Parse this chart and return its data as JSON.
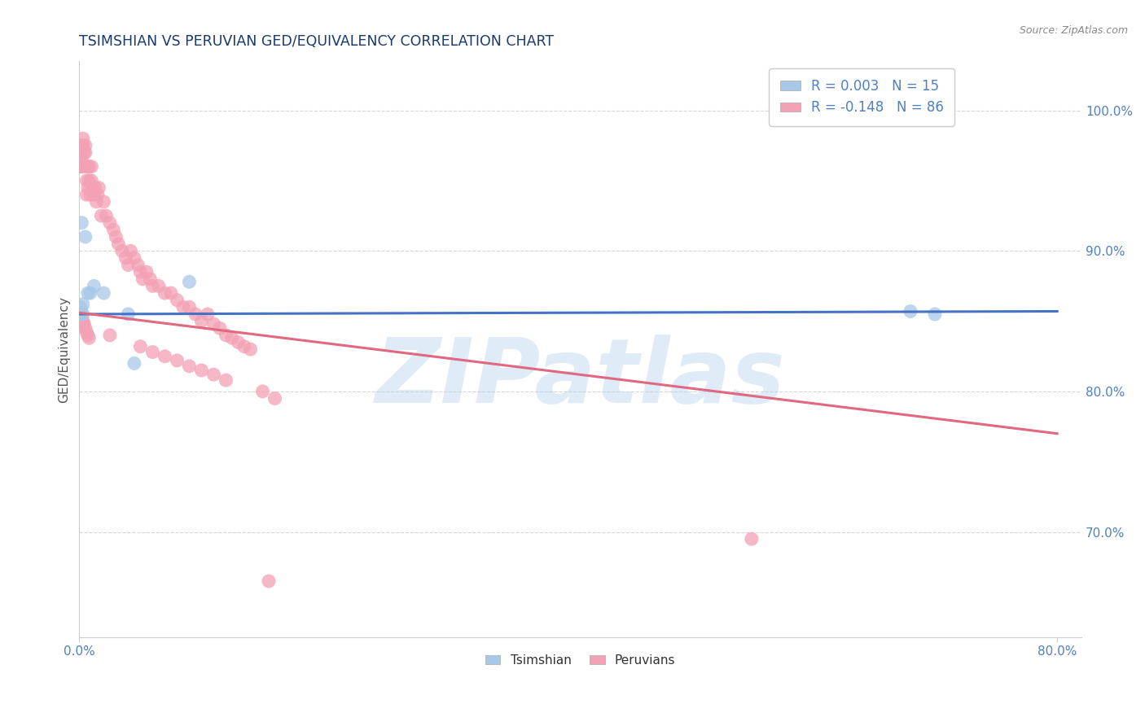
{
  "title": "TSIMSHIAN VS PERUVIAN GED/EQUIVALENCY CORRELATION CHART",
  "source": "Source: ZipAtlas.com",
  "ylabel": "GED/Equivalency",
  "ytick_labels": [
    "100.0%",
    "90.0%",
    "80.0%",
    "70.0%"
  ],
  "ytick_values": [
    1.0,
    0.9,
    0.8,
    0.7
  ],
  "xtick_labels": [
    "0.0%",
    "80.0%"
  ],
  "xtick_values": [
    0.0,
    0.8
  ],
  "xlim": [
    0.0,
    0.82
  ],
  "ylim": [
    0.625,
    1.035
  ],
  "watermark": "ZIPatlas",
  "legend_R1": "R = 0.003",
  "legend_N1": "N = 15",
  "legend_R2": "R = -0.148",
  "legend_N2": "N = 86",
  "blue_color": "#A8C8E8",
  "pink_color": "#F4A0B5",
  "blue_line_color": "#4472C4",
  "pink_line_color": "#E06880",
  "background_color": "#FFFFFF",
  "grid_color": "#CCCCCC",
  "axis_label_color": "#5080C0",
  "title_color": "#1A3A6A",
  "blue_trendline_x": [
    0.0,
    0.8
  ],
  "blue_trendline_y": [
    0.855,
    0.857
  ],
  "pink_trendline_x": [
    0.0,
    0.8
  ],
  "pink_trendline_y": [
    0.856,
    0.77
  ],
  "tsimshian_x": [
    0.001,
    0.001,
    0.002,
    0.003,
    0.003,
    0.005,
    0.007,
    0.009,
    0.012,
    0.02,
    0.045,
    0.09,
    0.68,
    0.7,
    0.04
  ],
  "tsimshian_y": [
    0.855,
    0.86,
    0.92,
    0.855,
    0.862,
    0.91,
    0.87,
    0.87,
    0.875,
    0.87,
    0.82,
    0.878,
    0.857,
    0.855,
    0.855
  ],
  "peruvian_x": [
    0.001,
    0.001,
    0.001,
    0.002,
    0.002,
    0.003,
    0.003,
    0.004,
    0.004,
    0.005,
    0.005,
    0.006,
    0.006,
    0.007,
    0.007,
    0.008,
    0.008,
    0.009,
    0.01,
    0.01,
    0.011,
    0.012,
    0.013,
    0.014,
    0.015,
    0.016,
    0.018,
    0.02,
    0.022,
    0.025,
    0.028,
    0.03,
    0.032,
    0.035,
    0.038,
    0.04,
    0.042,
    0.045,
    0.048,
    0.05,
    0.052,
    0.055,
    0.058,
    0.06,
    0.065,
    0.07,
    0.075,
    0.08,
    0.085,
    0.09,
    0.095,
    0.1,
    0.105,
    0.11,
    0.115,
    0.12,
    0.125,
    0.13,
    0.135,
    0.14,
    0.001,
    0.001,
    0.002,
    0.002,
    0.003,
    0.004,
    0.005,
    0.006,
    0.007,
    0.008,
    0.025,
    0.05,
    0.06,
    0.07,
    0.08,
    0.09,
    0.1,
    0.11,
    0.12,
    0.15,
    0.16,
    0.55,
    0.155,
    0.001,
    0.002,
    0.003
  ],
  "peruvian_y": [
    0.96,
    0.975,
    0.97,
    0.965,
    0.96,
    0.98,
    0.975,
    0.97,
    0.96,
    0.975,
    0.97,
    0.94,
    0.95,
    0.96,
    0.945,
    0.96,
    0.95,
    0.94,
    0.96,
    0.95,
    0.945,
    0.94,
    0.945,
    0.935,
    0.94,
    0.945,
    0.925,
    0.935,
    0.925,
    0.92,
    0.915,
    0.91,
    0.905,
    0.9,
    0.895,
    0.89,
    0.9,
    0.895,
    0.89,
    0.885,
    0.88,
    0.885,
    0.88,
    0.875,
    0.875,
    0.87,
    0.87,
    0.865,
    0.86,
    0.86,
    0.855,
    0.85,
    0.855,
    0.848,
    0.845,
    0.84,
    0.838,
    0.835,
    0.832,
    0.83,
    0.855,
    0.848,
    0.855,
    0.848,
    0.85,
    0.848,
    0.845,
    0.842,
    0.84,
    0.838,
    0.84,
    0.832,
    0.828,
    0.825,
    0.822,
    0.818,
    0.815,
    0.812,
    0.808,
    0.8,
    0.795,
    0.695,
    0.665,
    0.852,
    0.85,
    0.848
  ]
}
